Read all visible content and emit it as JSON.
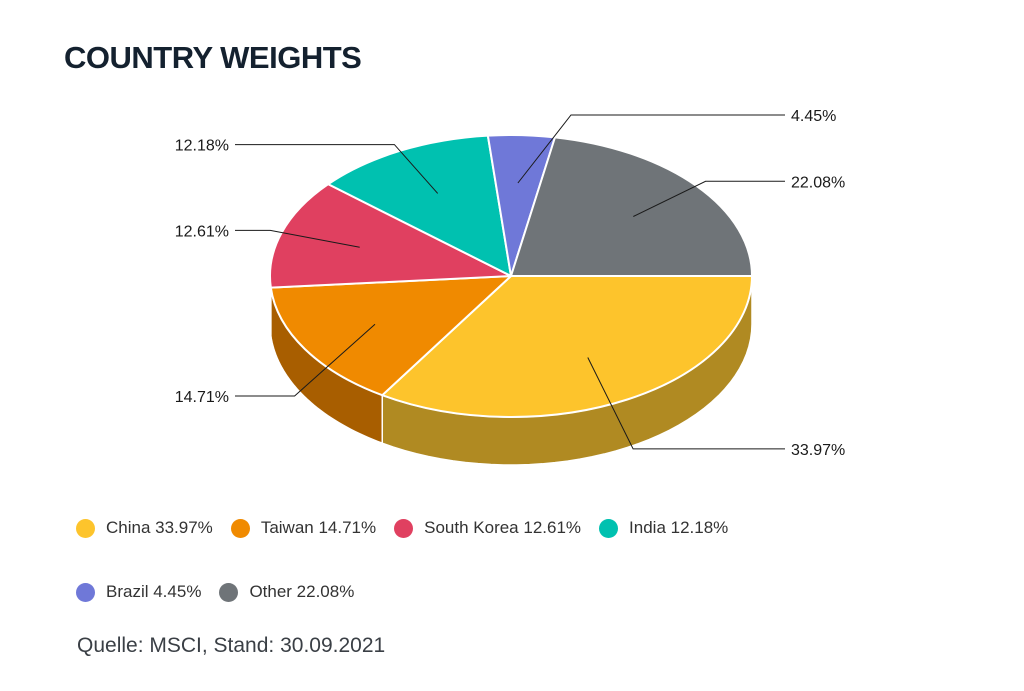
{
  "chart_data": {
    "type": "pie",
    "title": "COUNTRY WEIGHTS",
    "categories": [
      "China",
      "Taiwan",
      "South Korea",
      "India",
      "Brazil",
      "Other"
    ],
    "values": [
      33.97,
      14.71,
      12.61,
      12.18,
      4.45,
      22.08
    ],
    "data_labels": [
      "33.97%",
      "14.71%",
      "12.61%",
      "12.18%",
      "4.45%",
      "22.08%"
    ],
    "colors": [
      "#fdc42c",
      "#f08a00",
      "#e04060",
      "#00c1b0",
      "#6f78d8",
      "#6f7478"
    ],
    "side_colors": [
      "#b08a22",
      "#a85e00",
      "#9c2c43",
      "#008a7c",
      "#4c54a0",
      "#4c5053"
    ],
    "legend": [
      {
        "label": "China 33.97%"
      },
      {
        "label": "Taiwan 14.71%"
      },
      {
        "label": "South Korea 12.61%"
      },
      {
        "label": "India 12.18%"
      },
      {
        "label": "Brazil 4.45%"
      },
      {
        "label": "Other 22.08%"
      }
    ],
    "three_d": true,
    "legend_position": "bottom"
  },
  "source": "Quelle: MSCI, Stand: 30.09.2021"
}
